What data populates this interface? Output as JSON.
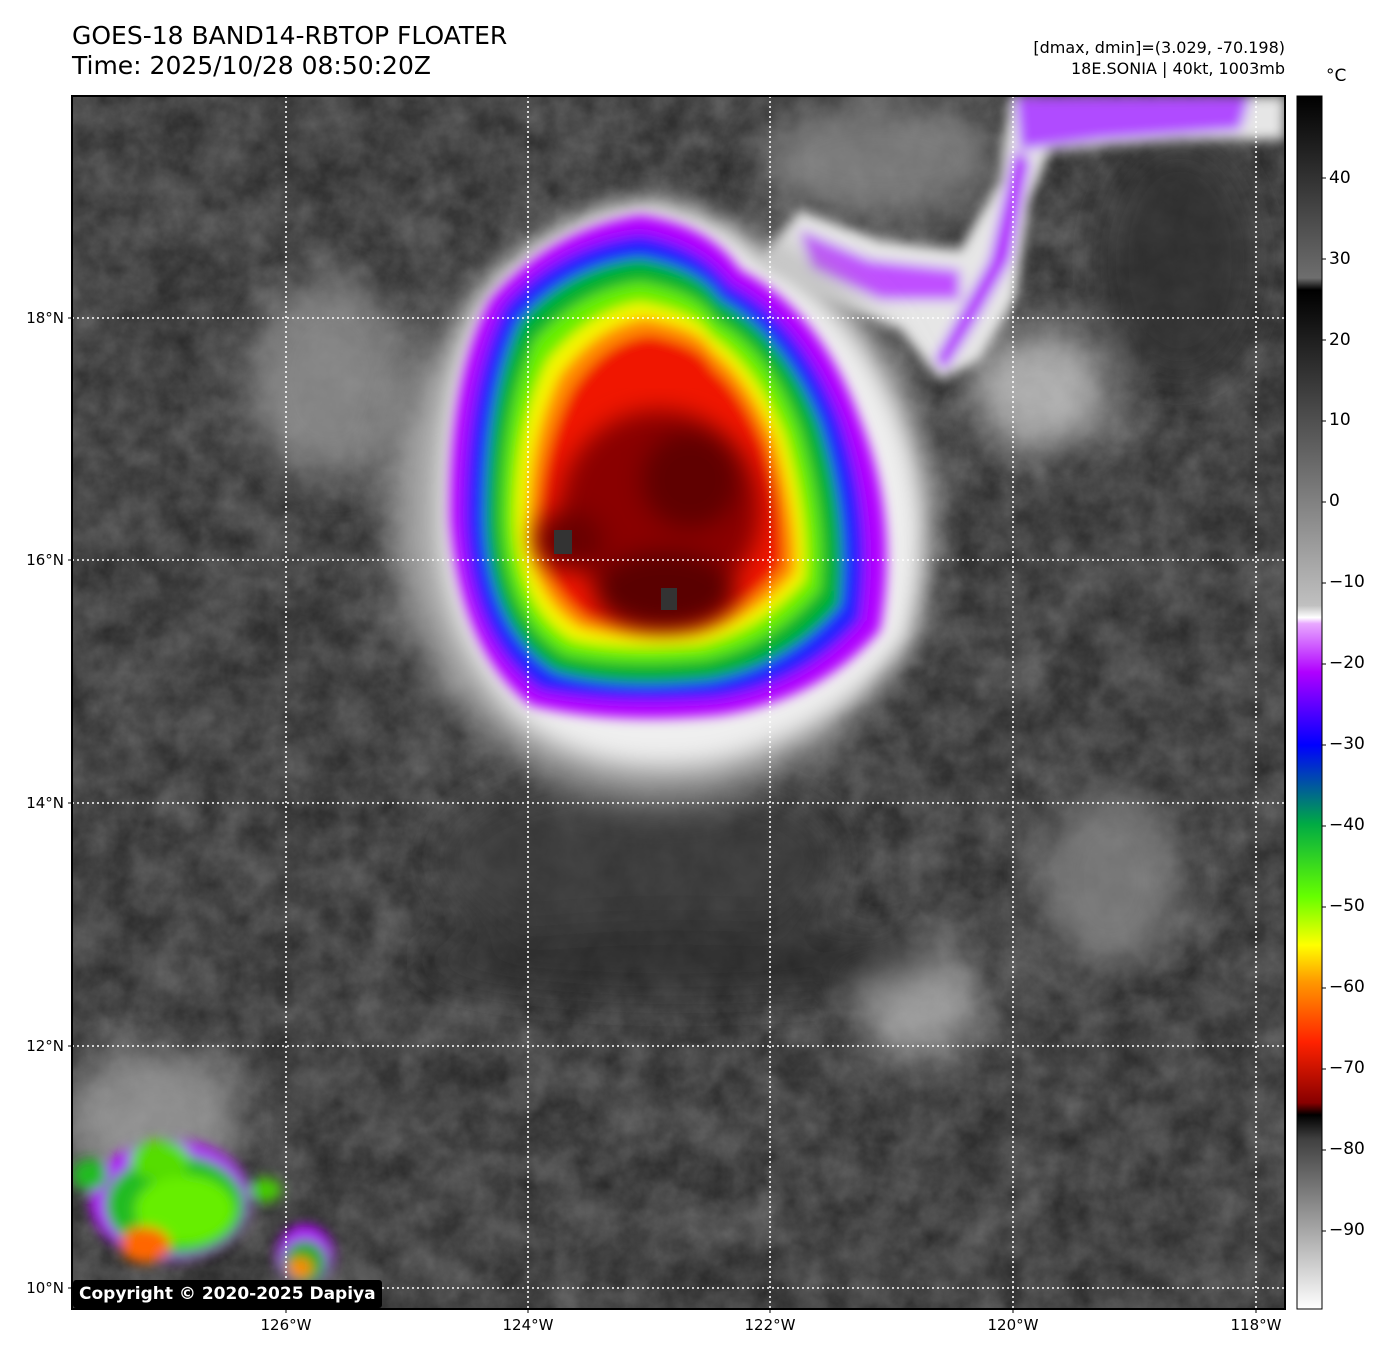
{
  "header": {
    "title_line1": "GOES-18 BAND14-RBTOP FLOATER",
    "title_line2": "Time: 2025/10/28 08:50:20Z",
    "info_line1": "[dmax, dmin]=(3.029, -70.198)",
    "info_line2": "18E.SONIA | 40kt, 1003mb"
  },
  "colorbar": {
    "unit": "°C",
    "ticks": [
      "40",
      "30",
      "20",
      "10",
      "0",
      "−10",
      "−20",
      "−30",
      "−40",
      "−50",
      "−60",
      "−70",
      "−80",
      "−90"
    ]
  },
  "map": {
    "lat_labels": [
      "18°N",
      "16°N",
      "14°N",
      "12°N",
      "10°N"
    ],
    "lon_labels": [
      "126°W",
      "124°W",
      "122°W",
      "120°W",
      "118°W"
    ],
    "copyright": "Copyright © 2020-2025 Dapiya",
    "colors": {
      "background_gray": "#4a4a4a",
      "cold_white": "#f0f0f0",
      "violet": "#b700ff",
      "blue": "#1a1aff",
      "green": "#22dd22",
      "yellow": "#eeee00",
      "orange": "#ff8800",
      "red": "#ee1100",
      "dark_red": "#5a0000"
    }
  }
}
